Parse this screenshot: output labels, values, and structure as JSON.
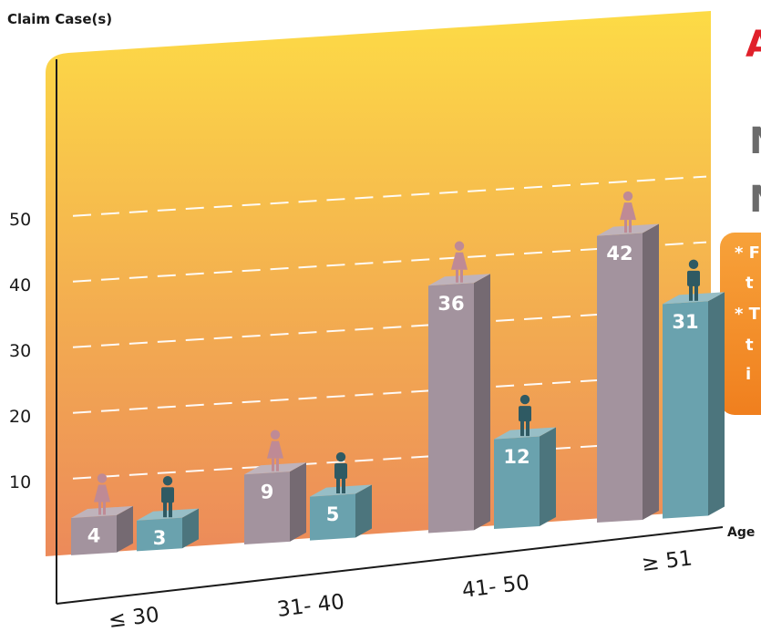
{
  "chart_data": {
    "type": "bar",
    "title": "",
    "ylabel": "Claim Case(s)",
    "xlabel": "Age",
    "yticks": [
      10,
      20,
      30,
      40,
      50
    ],
    "ylim": [
      0,
      55
    ],
    "categories": [
      "≤ 30",
      "31- 40",
      "41- 50",
      "≥ 51"
    ],
    "series": [
      {
        "values": [
          4,
          9,
          36,
          42
        ]
      },
      {
        "values": [
          3,
          5,
          12,
          31
        ]
      }
    ],
    "grid": true,
    "colors": {
      "female": "#a3939e",
      "male": "#6aa2ae",
      "background_top": "#fddb46",
      "background_bottom": "#ec8a5a",
      "icon_female": "#bf8a95",
      "icon_male": "#2f5a63"
    }
  },
  "side_panel": {
    "heading_char": "A",
    "heading_color": "#e0202a",
    "line1_char": "N",
    "line2_char": "N",
    "note_box_color": "#f38a25",
    "note_lines": [
      "* F",
      "t",
      "* T",
      "t",
      "i"
    ]
  }
}
